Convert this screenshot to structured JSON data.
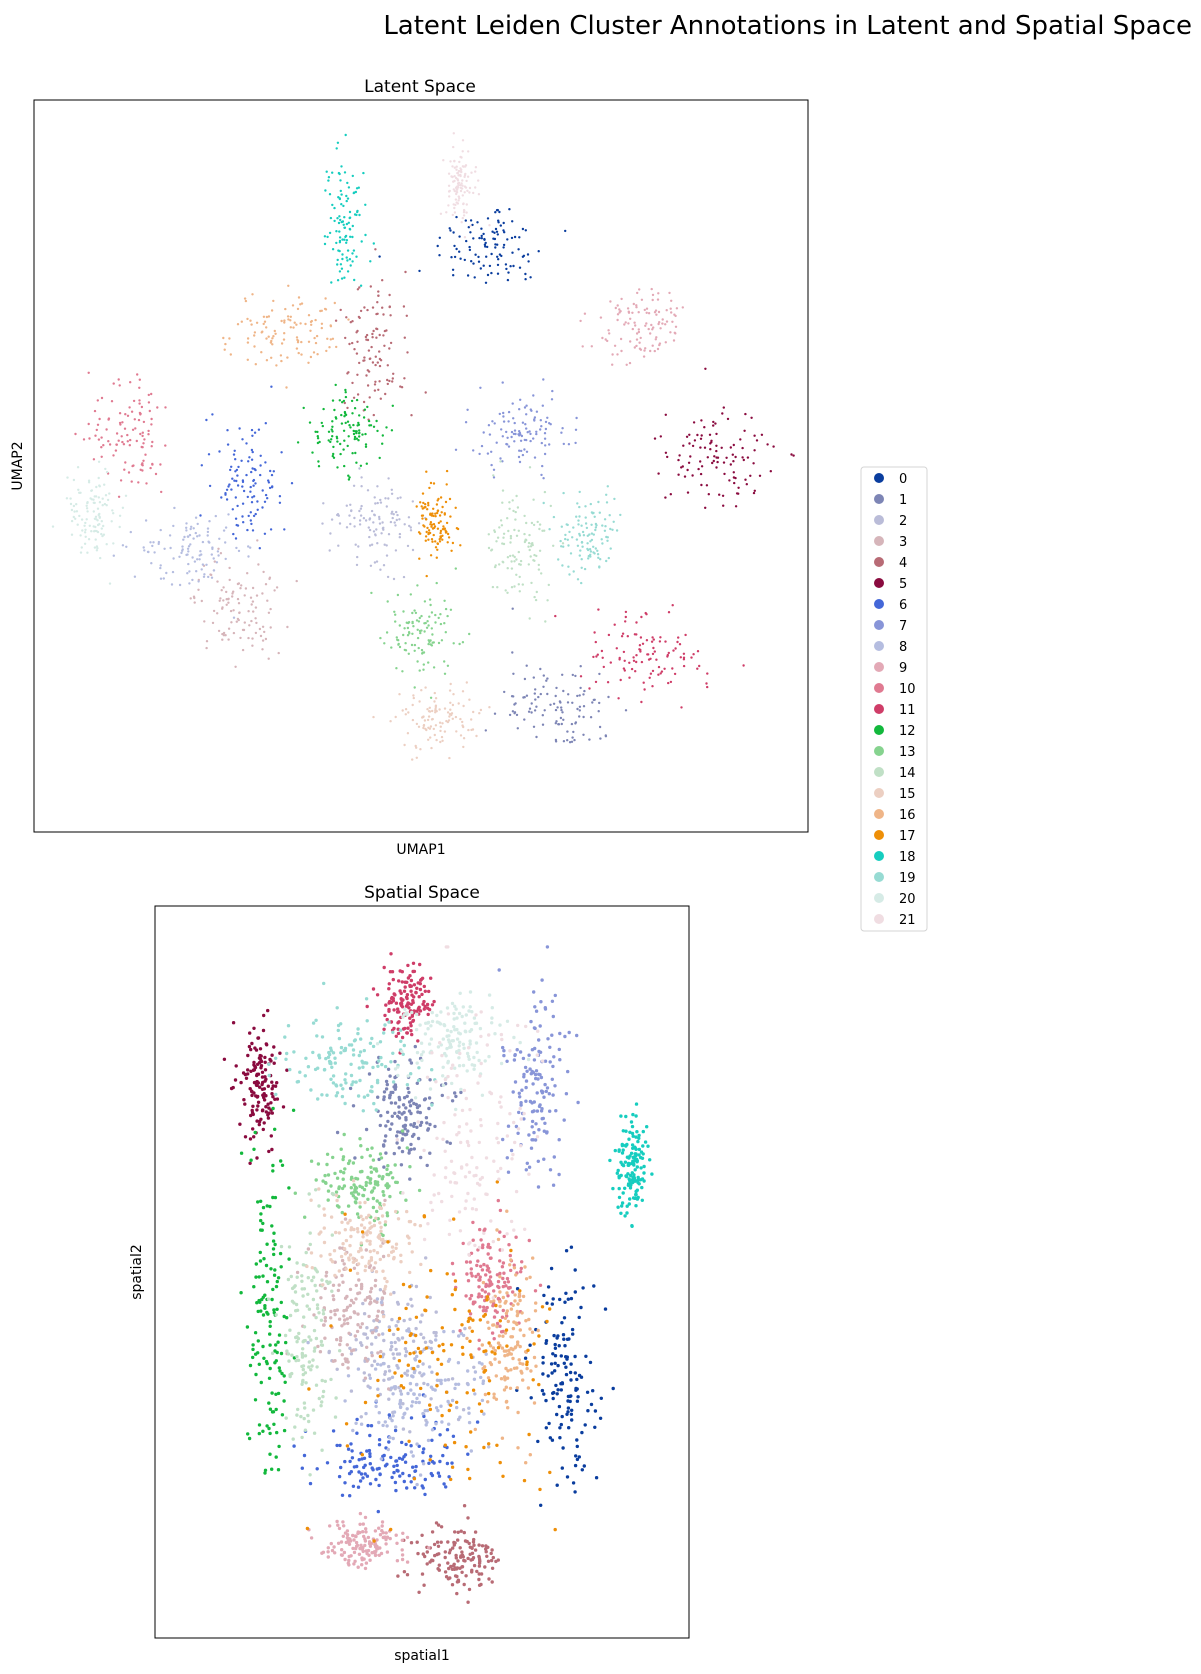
{
  "figure": {
    "suptitle": "Latent Leiden Cluster Annotations in Latent and Spatial Space"
  },
  "legend": {
    "placement": "right",
    "items": [
      {
        "label": "0",
        "color": "#0a3d9e"
      },
      {
        "label": "1",
        "color": "#7d85b5"
      },
      {
        "label": "2",
        "color": "#babcd8"
      },
      {
        "label": "3",
        "color": "#d6b5ba"
      },
      {
        "label": "4",
        "color": "#b86b75"
      },
      {
        "label": "5",
        "color": "#8a0b3f"
      },
      {
        "label": "6",
        "color": "#4467d8"
      },
      {
        "label": "7",
        "color": "#8895d8"
      },
      {
        "label": "8",
        "color": "#b5bde0"
      },
      {
        "label": "9",
        "color": "#e3a9b6"
      },
      {
        "label": "10",
        "color": "#e07a91"
      },
      {
        "label": "11",
        "color": "#cf3d68"
      },
      {
        "label": "12",
        "color": "#12b83c"
      },
      {
        "label": "13",
        "color": "#86d38f"
      },
      {
        "label": "14",
        "color": "#c0e0c6"
      },
      {
        "label": "15",
        "color": "#eccfc2"
      },
      {
        "label": "16",
        "color": "#efb588"
      },
      {
        "label": "17",
        "color": "#ee8f08"
      },
      {
        "label": "18",
        "color": "#16cdbf"
      },
      {
        "label": "19",
        "color": "#97dbd3"
      },
      {
        "label": "20",
        "color": "#d6ebe6"
      },
      {
        "label": "21",
        "color": "#f0dde2"
      }
    ]
  },
  "chart_data": [
    {
      "type": "scatter",
      "title": "Latent Space",
      "xlabel": "UMAP1",
      "ylabel": "UMAP2",
      "xticks": [],
      "yticks": [],
      "grid": false,
      "clusters": [
        {
          "cluster": "0",
          "center": [
            0.59,
            0.19
          ],
          "spread": [
            0.065,
            0.055
          ]
        },
        {
          "cluster": "1",
          "center": [
            0.68,
            0.84
          ],
          "spread": [
            0.07,
            0.06
          ]
        },
        {
          "cluster": "2",
          "center": [
            0.44,
            0.58
          ],
          "spread": [
            0.05,
            0.06
          ]
        },
        {
          "cluster": "3",
          "center": [
            0.26,
            0.7
          ],
          "spread": [
            0.05,
            0.06
          ]
        },
        {
          "cluster": "4",
          "center": [
            0.44,
            0.33
          ],
          "spread": [
            0.04,
            0.09
          ]
        },
        {
          "cluster": "5",
          "center": [
            0.89,
            0.49
          ],
          "spread": [
            0.06,
            0.06
          ]
        },
        {
          "cluster": "6",
          "center": [
            0.27,
            0.52
          ],
          "spread": [
            0.045,
            0.08
          ]
        },
        {
          "cluster": "7",
          "center": [
            0.63,
            0.45
          ],
          "spread": [
            0.06,
            0.05
          ]
        },
        {
          "cluster": "8",
          "center": [
            0.2,
            0.62
          ],
          "spread": [
            0.06,
            0.05
          ]
        },
        {
          "cluster": "9",
          "center": [
            0.79,
            0.3
          ],
          "spread": [
            0.06,
            0.05
          ]
        },
        {
          "cluster": "10",
          "center": [
            0.12,
            0.46
          ],
          "spread": [
            0.05,
            0.07
          ]
        },
        {
          "cluster": "11",
          "center": [
            0.8,
            0.77
          ],
          "spread": [
            0.07,
            0.05
          ]
        },
        {
          "cluster": "12",
          "center": [
            0.4,
            0.45
          ],
          "spread": [
            0.05,
            0.05
          ]
        },
        {
          "cluster": "13",
          "center": [
            0.5,
            0.74
          ],
          "spread": [
            0.04,
            0.06
          ]
        },
        {
          "cluster": "14",
          "center": [
            0.63,
            0.61
          ],
          "spread": [
            0.04,
            0.08
          ]
        },
        {
          "cluster": "15",
          "center": [
            0.52,
            0.86
          ],
          "spread": [
            0.05,
            0.04
          ]
        },
        {
          "cluster": "16",
          "center": [
            0.32,
            0.31
          ],
          "spread": [
            0.07,
            0.05
          ]
        },
        {
          "cluster": "17",
          "center": [
            0.52,
            0.58
          ],
          "spread": [
            0.02,
            0.05
          ]
        },
        {
          "cluster": "18",
          "center": [
            0.4,
            0.16
          ],
          "spread": [
            0.025,
            0.08
          ]
        },
        {
          "cluster": "19",
          "center": [
            0.72,
            0.6
          ],
          "spread": [
            0.04,
            0.05
          ]
        },
        {
          "cluster": "20",
          "center": [
            0.07,
            0.57
          ],
          "spread": [
            0.03,
            0.06
          ]
        },
        {
          "cluster": "21",
          "center": [
            0.55,
            0.1
          ],
          "spread": [
            0.02,
            0.05
          ]
        }
      ]
    },
    {
      "type": "scatter",
      "title": "Spatial Space",
      "xlabel": "spatial1",
      "ylabel": "spatial2",
      "xticks": [],
      "yticks": [],
      "grid": false,
      "clusters": [
        {
          "cluster": "0",
          "center": [
            0.8,
            0.64
          ],
          "spread": [
            0.06,
            0.14
          ]
        },
        {
          "cluster": "1",
          "center": [
            0.46,
            0.25
          ],
          "spread": [
            0.09,
            0.07
          ]
        },
        {
          "cluster": "2",
          "center": [
            0.45,
            0.6
          ],
          "spread": [
            0.12,
            0.08
          ]
        },
        {
          "cluster": "3",
          "center": [
            0.35,
            0.53
          ],
          "spread": [
            0.08,
            0.08
          ]
        },
        {
          "cluster": "4",
          "center": [
            0.58,
            0.9
          ],
          "spread": [
            0.08,
            0.04
          ]
        },
        {
          "cluster": "5",
          "center": [
            0.16,
            0.21
          ],
          "spread": [
            0.04,
            0.07
          ]
        },
        {
          "cluster": "6",
          "center": [
            0.43,
            0.76
          ],
          "spread": [
            0.13,
            0.05
          ]
        },
        {
          "cluster": "7",
          "center": [
            0.74,
            0.22
          ],
          "spread": [
            0.06,
            0.13
          ]
        },
        {
          "cluster": "8",
          "center": [
            0.5,
            0.66
          ],
          "spread": [
            0.12,
            0.09
          ]
        },
        {
          "cluster": "9",
          "center": [
            0.38,
            0.88
          ],
          "spread": [
            0.08,
            0.03
          ]
        },
        {
          "cluster": "10",
          "center": [
            0.64,
            0.49
          ],
          "spread": [
            0.06,
            0.07
          ]
        },
        {
          "cluster": "11",
          "center": [
            0.47,
            0.09
          ],
          "spread": [
            0.05,
            0.05
          ]
        },
        {
          "cluster": "12",
          "center": [
            0.18,
            0.55
          ],
          "spread": [
            0.04,
            0.22
          ]
        },
        {
          "cluster": "13",
          "center": [
            0.38,
            0.36
          ],
          "spread": [
            0.09,
            0.05
          ]
        },
        {
          "cluster": "14",
          "center": [
            0.26,
            0.58
          ],
          "spread": [
            0.05,
            0.14
          ]
        },
        {
          "cluster": "15",
          "center": [
            0.38,
            0.44
          ],
          "spread": [
            0.1,
            0.06
          ]
        },
        {
          "cluster": "16",
          "center": [
            0.68,
            0.58
          ],
          "spread": [
            0.05,
            0.12
          ]
        },
        {
          "cluster": "17",
          "center": [
            0.58,
            0.62
          ],
          "spread": [
            0.18,
            0.2
          ]
        },
        {
          "cluster": "18",
          "center": [
            0.94,
            0.33
          ],
          "spread": [
            0.03,
            0.07
          ]
        },
        {
          "cluster": "19",
          "center": [
            0.34,
            0.18
          ],
          "spread": [
            0.12,
            0.06
          ]
        },
        {
          "cluster": "20",
          "center": [
            0.56,
            0.15
          ],
          "spread": [
            0.1,
            0.06
          ]
        },
        {
          "cluster": "21",
          "center": [
            0.6,
            0.3
          ],
          "spread": [
            0.12,
            0.18
          ]
        }
      ]
    }
  ]
}
